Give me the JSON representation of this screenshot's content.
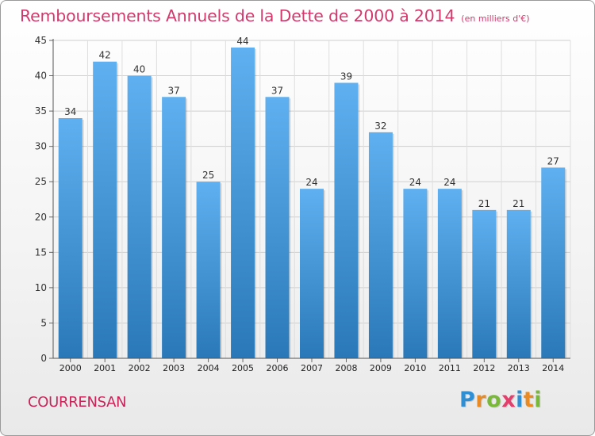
{
  "chart_data": {
    "type": "bar",
    "title": "Remboursements Annuels de la Dette de 2000 à 2014",
    "unit_note": "(en milliers d'€)",
    "categories": [
      "2000",
      "2001",
      "2002",
      "2003",
      "2004",
      "2005",
      "2006",
      "2007",
      "2008",
      "2009",
      "2010",
      "2011",
      "2012",
      "2013",
      "2014"
    ],
    "values": [
      34,
      42,
      40,
      37,
      25,
      44,
      37,
      24,
      39,
      32,
      24,
      24,
      21,
      21,
      27
    ],
    "data_labels": [
      "34",
      "42",
      "40",
      "37",
      "25",
      "44",
      "37",
      "24",
      "39",
      "32",
      "24",
      "24",
      "21",
      "21",
      "27"
    ],
    "xlabel": "",
    "ylabel": "",
    "ylim": [
      0,
      45
    ],
    "yticks": [
      0,
      5,
      10,
      15,
      20,
      25,
      30,
      35,
      40,
      45
    ],
    "ytick_labels": [
      "0",
      "5",
      "10",
      "15",
      "20",
      "25",
      "30",
      "35",
      "40",
      "45"
    ],
    "grid": true,
    "legend": "none",
    "bar_color_top": "#5fb0f0",
    "bar_color_bottom": "#2a78b8"
  },
  "footer": {
    "location": "COURRENSAN",
    "brand_letters": [
      "P",
      "r",
      "o",
      "x",
      "i",
      "t",
      "i"
    ],
    "brand_colors": [
      "#2f8fd4",
      "#e98a22",
      "#7ab83a",
      "#e23f6c",
      "#2f8fd4",
      "#e98a22",
      "#7ab83a"
    ],
    "title_color": "#d13a6d",
    "location_color": "#c8245a"
  }
}
